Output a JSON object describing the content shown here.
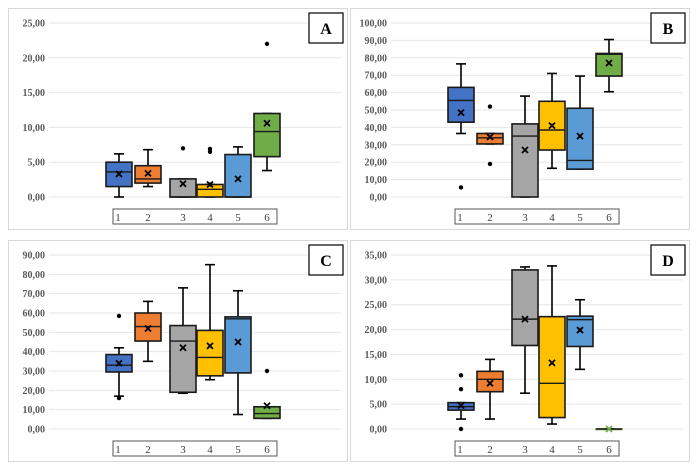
{
  "chart_data": [
    {
      "type": "box",
      "panel_label": "A",
      "ylim": [
        0,
        25
      ],
      "ystep": 5,
      "ytick_labels": [
        "0,00",
        "5,00",
        "10,00",
        "15,00",
        "20,00",
        "25,00"
      ],
      "categories": [
        "1",
        "2",
        "3",
        "4",
        "5",
        "6"
      ],
      "grid": true,
      "boxes": [
        {
          "min": 0,
          "q1": 1.5,
          "median": 3.6,
          "q3": 5.0,
          "max": 6.2,
          "mean": 3.3,
          "outliers": []
        },
        {
          "min": 1.5,
          "q1": 2.0,
          "median": 2.6,
          "q3": 4.5,
          "max": 6.8,
          "mean": 3.4,
          "outliers": []
        },
        {
          "min": 0,
          "q1": 0,
          "median": 0,
          "q3": 2.6,
          "max": 2.6,
          "mean": 1.9,
          "outliers": [
            7.0
          ]
        },
        {
          "min": 0,
          "q1": 0,
          "median": 1.1,
          "q3": 1.8,
          "max": 1.8,
          "mean": 1.8,
          "outliers": [
            6.5,
            6.9,
            1.8
          ]
        },
        {
          "min": 0,
          "q1": 0,
          "median": 0,
          "q3": 6.1,
          "max": 7.2,
          "mean": 2.6,
          "outliers": []
        },
        {
          "min": 3.8,
          "q1": 5.8,
          "median": 9.4,
          "q3": 12.0,
          "max": 12.0,
          "mean": 10.6,
          "outliers": [
            22.0
          ]
        }
      ]
    },
    {
      "type": "box",
      "panel_label": "B",
      "ylim": [
        0,
        100
      ],
      "ystep": 10,
      "ytick_labels": [
        "0,00",
        "10,00",
        "20,00",
        "30,00",
        "40,00",
        "50,00",
        "60,00",
        "70,00",
        "80,00",
        "90,00",
        "100,00"
      ],
      "categories": [
        "1",
        "2",
        "3",
        "4",
        "5",
        "6"
      ],
      "grid": true,
      "boxes": [
        {
          "min": 36.5,
          "q1": 43,
          "median": 55.5,
          "q3": 63,
          "max": 76.5,
          "mean": 48.5,
          "outliers": [
            5.5
          ]
        },
        {
          "min": 30.5,
          "q1": 30.5,
          "median": 34,
          "q3": 36.5,
          "max": 36.5,
          "mean": 34.5,
          "outliers": [
            52,
            19
          ]
        },
        {
          "min": 0,
          "q1": 0,
          "median": 35,
          "q3": 42,
          "max": 58,
          "mean": 27,
          "outliers": []
        },
        {
          "min": 16.5,
          "q1": 27,
          "median": 38.5,
          "q3": 55,
          "max": 71,
          "mean": 41,
          "outliers": []
        },
        {
          "min": 16,
          "q1": 16,
          "median": 21,
          "q3": 51,
          "max": 69.5,
          "mean": 35,
          "outliers": []
        },
        {
          "min": 60.5,
          "q1": 69.5,
          "median": 82,
          "q3": 82.5,
          "max": 90.5,
          "mean": 77,
          "outliers": []
        }
      ]
    },
    {
      "type": "box",
      "panel_label": "C",
      "ylim": [
        0,
        90
      ],
      "ystep": 10,
      "ytick_labels": [
        "0,00",
        "10,00",
        "20,00",
        "30,00",
        "40,00",
        "50,00",
        "60,00",
        "70,00",
        "80,00",
        "90,00"
      ],
      "categories": [
        "1",
        "2",
        "3",
        "4",
        "5",
        "6"
      ],
      "grid": true,
      "boxes": [
        {
          "min": 17,
          "q1": 29.5,
          "median": 33,
          "q3": 38.5,
          "max": 42,
          "mean": 34,
          "outliers": [
            58.5,
            16
          ]
        },
        {
          "min": 35,
          "q1": 45.5,
          "median": 53,
          "q3": 60,
          "max": 66,
          "mean": 52,
          "outliers": []
        },
        {
          "min": 18.5,
          "q1": 19,
          "median": 45.5,
          "q3": 53.5,
          "max": 73,
          "mean": 42,
          "outliers": []
        },
        {
          "min": 25.5,
          "q1": 27.5,
          "median": 37,
          "q3": 51,
          "max": 85,
          "mean": 43,
          "outliers": []
        },
        {
          "min": 7.5,
          "q1": 29,
          "median": 57,
          "q3": 58,
          "max": 71.5,
          "mean": 45,
          "outliers": []
        },
        {
          "min": 5.5,
          "q1": 5.5,
          "median": 8,
          "q3": 11.5,
          "max": 11.5,
          "mean": 12,
          "outliers": [
            30
          ]
        }
      ]
    },
    {
      "type": "box",
      "panel_label": "D",
      "ylim": [
        0,
        35
      ],
      "ystep": 5,
      "ytick_labels": [
        "0,00",
        "5,00",
        "10,00",
        "15,00",
        "20,00",
        "25,00",
        "30,00",
        "35,00"
      ],
      "categories": [
        "1",
        "2",
        "3",
        "4",
        "5",
        "6"
      ],
      "grid": true,
      "boxes": [
        {
          "min": 2,
          "q1": 3.8,
          "median": 4.5,
          "q3": 5.3,
          "max": 5.3,
          "mean": 4.7,
          "outliers": [
            10.8,
            8,
            0
          ]
        },
        {
          "min": 2,
          "q1": 7.5,
          "median": 10,
          "q3": 11.6,
          "max": 14,
          "mean": 9.2,
          "outliers": []
        },
        {
          "min": 7.2,
          "q1": 16.8,
          "median": 22.1,
          "q3": 32,
          "max": 32.6,
          "mean": 22.1,
          "outliers": []
        },
        {
          "min": 1,
          "q1": 2.3,
          "median": 9.2,
          "q3": 22.6,
          "max": 32.8,
          "mean": 13.3,
          "outliers": []
        },
        {
          "min": 12,
          "q1": 16.6,
          "median": 22,
          "q3": 22.7,
          "max": 26,
          "mean": 19.9,
          "outliers": []
        },
        {
          "min": 0,
          "q1": 0,
          "median": 0,
          "q3": 0,
          "max": 0,
          "mean": 0,
          "outliers": []
        }
      ]
    }
  ],
  "series_colors": [
    "#4472C4",
    "#ED7D31",
    "#A5A5A5",
    "#FFC000",
    "#5B9BD5",
    "#70AD47"
  ]
}
